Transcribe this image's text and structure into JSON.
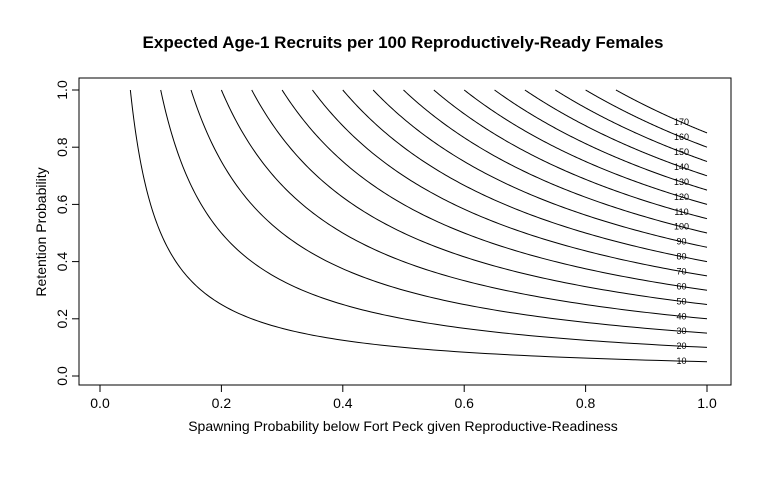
{
  "chart_data": {
    "type": "contour",
    "title": "Expected Age-1 Recruits per 100 Reproductively-Ready Females",
    "xlabel": "Spawning Probability below Fort Peck given Reproductive-Readiness",
    "ylabel": "Retention Probability",
    "xlim": [
      0,
      1
    ],
    "ylim": [
      0,
      1
    ],
    "x_ticks": [
      "0.0",
      "0.2",
      "0.4",
      "0.6",
      "0.8",
      "1.0"
    ],
    "y_ticks": [
      "0.0",
      "0.2",
      "0.4",
      "0.6",
      "0.8",
      "1.0"
    ],
    "grid": false,
    "function": "z = k * x * y (contour levels in recruits)",
    "k": 200,
    "levels": [
      10,
      20,
      30,
      40,
      50,
      60,
      70,
      80,
      90,
      100,
      110,
      120,
      130,
      140,
      150,
      160,
      170
    ],
    "level_labels": [
      "10",
      "20",
      "30",
      "40",
      "50",
      "60",
      "70",
      "80",
      "90",
      "100",
      "110",
      "120",
      "130",
      "140",
      "150",
      "160",
      "170"
    ]
  }
}
